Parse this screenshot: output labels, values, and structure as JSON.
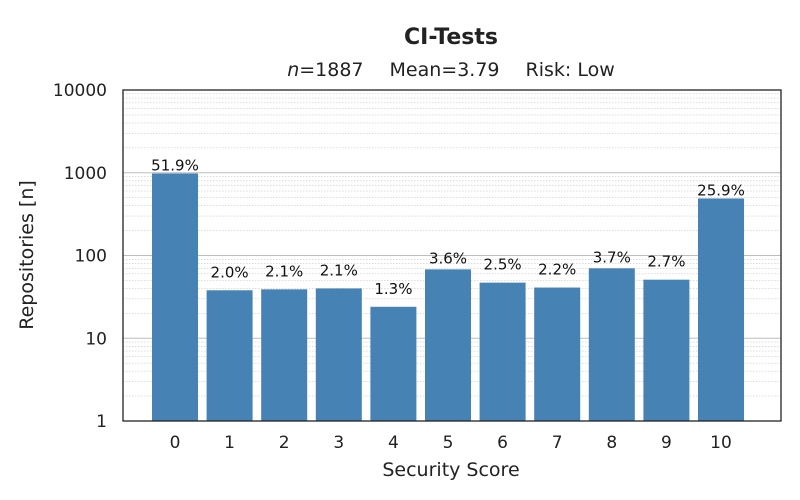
{
  "chart_data": {
    "type": "bar",
    "title": "CI-Tests",
    "subtitle": {
      "n_label": "n",
      "n_value": "=1887",
      "mean": "Mean=3.79",
      "risk": "Risk: Low"
    },
    "xlabel": "Security Score",
    "ylabel": "Repositories [n]",
    "yscale": "log",
    "ylim": [
      1,
      10000
    ],
    "yticks": [
      1,
      10,
      100,
      1000,
      10000
    ],
    "ytick_labels": [
      "1",
      "10",
      "100",
      "1000",
      "10000"
    ],
    "categories": [
      "0",
      "1",
      "2",
      "3",
      "4",
      "5",
      "6",
      "7",
      "8",
      "9",
      "10"
    ],
    "values": [
      980,
      38,
      39,
      40,
      24,
      68,
      47,
      41,
      70,
      51,
      489
    ],
    "labels": [
      "51.9%",
      "2.0%",
      "2.1%",
      "2.1%",
      "1.3%",
      "3.6%",
      "2.5%",
      "2.2%",
      "3.7%",
      "2.7%",
      "25.9%"
    ],
    "grid": "y-major-and-minor",
    "bar_color": "#4682b4"
  }
}
